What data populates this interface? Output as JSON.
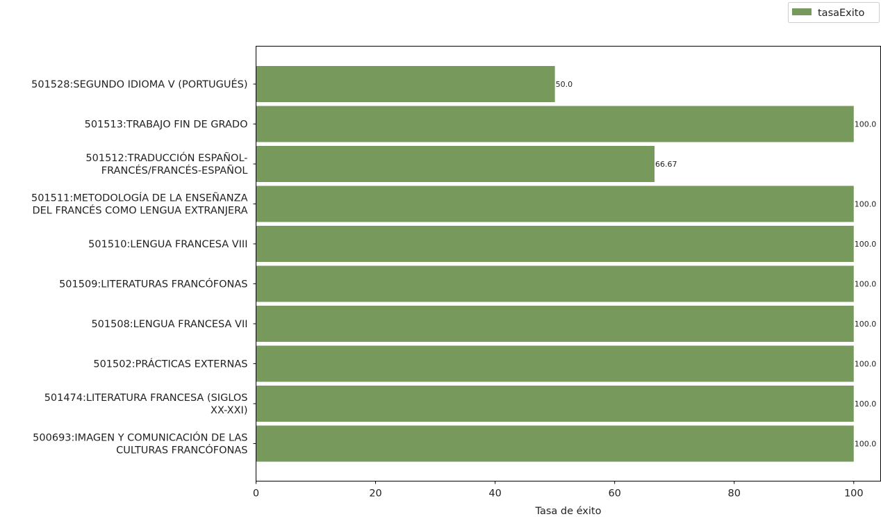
{
  "chart_data": {
    "type": "bar",
    "orientation": "horizontal",
    "categories": [
      [
        "500693:IMAGEN Y COMUNICACIÓN DE LAS",
        "CULTURAS FRANCÓFONAS"
      ],
      [
        "501474:LITERATURA FRANCESA (SIGLOS",
        "XX-XXI)"
      ],
      [
        "501502:PRÁCTICAS EXTERNAS"
      ],
      [
        "501508:LENGUA FRANCESA VII"
      ],
      [
        "501509:LITERATURAS FRANCÓFONAS"
      ],
      [
        "501510:LENGUA FRANCESA VIII"
      ],
      [
        "501511:METODOLOGÍA DE LA ENSEÑANZA",
        "DEL FRANCÉS COMO LENGUA EXTRANJERA"
      ],
      [
        "501512:TRADUCCIÓN ESPAÑOL-",
        "FRANCÉS/FRANCÉS-ESPAÑOL"
      ],
      [
        "501513:TRABAJO FIN DE GRADO"
      ],
      [
        "501528:SEGUNDO IDIOMA V (PORTUGUÉS)"
      ]
    ],
    "series": [
      {
        "name": "tasaExito",
        "color": "#779a5c",
        "values": [
          100.0,
          100.0,
          100.0,
          100.0,
          100.0,
          100.0,
          100.0,
          66.67,
          100.0,
          50.0
        ],
        "value_labels": [
          "100.0",
          "100.0",
          "100.0",
          "100.0",
          "100.0",
          "100.0",
          "100.0",
          "66.67",
          "100.0",
          "50.0"
        ]
      }
    ],
    "xlabel": "Tasa de éxito",
    "xlim": [
      0,
      104.5
    ],
    "xticks": [
      0,
      20,
      40,
      60,
      80,
      100
    ],
    "grid": false,
    "legend_position": "top-right"
  }
}
